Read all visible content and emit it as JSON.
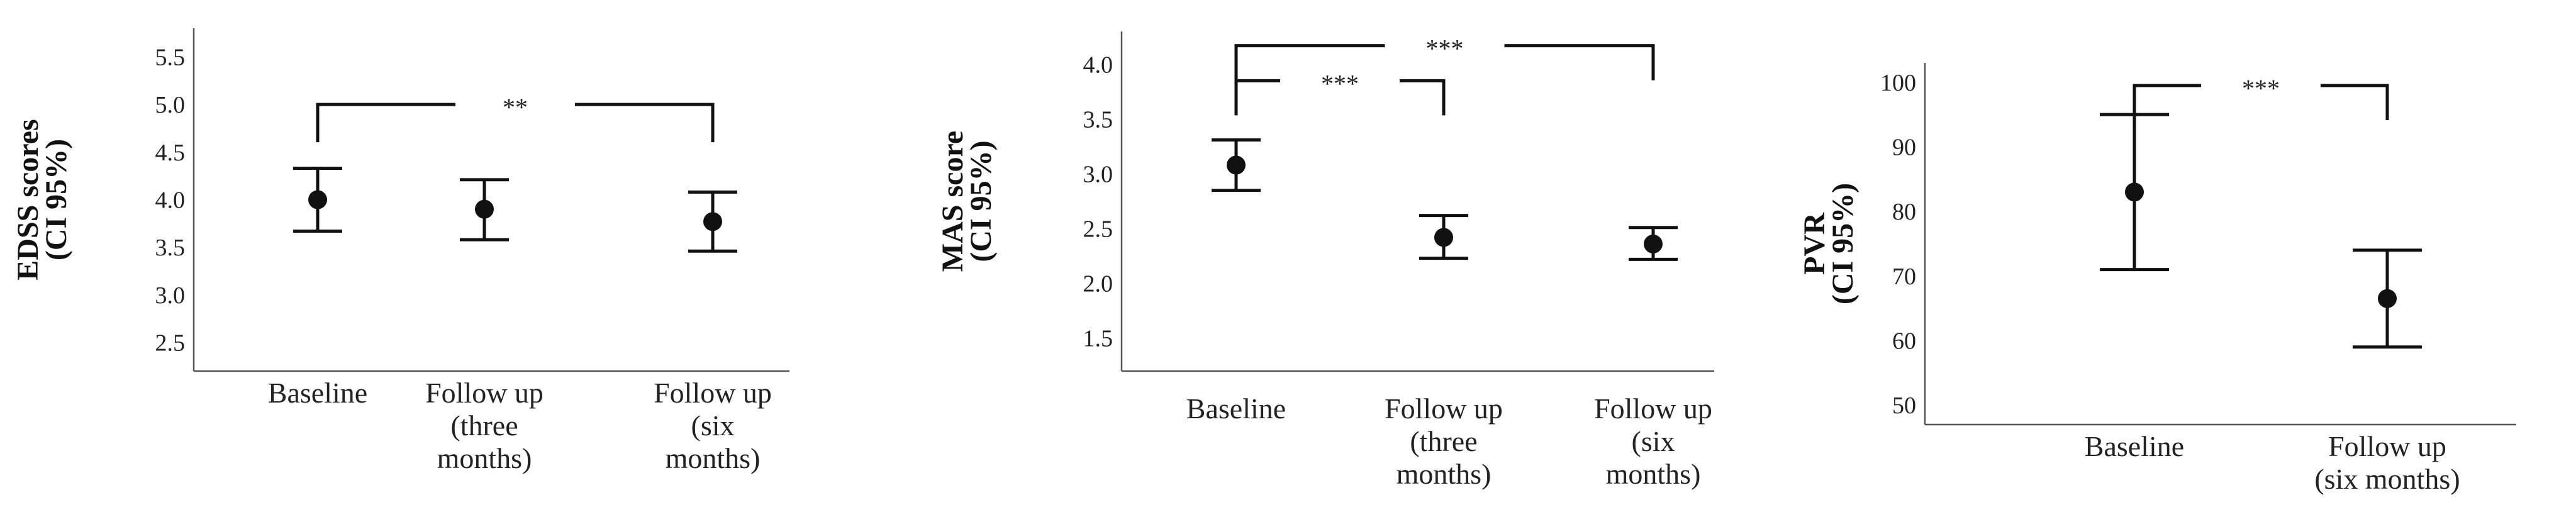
{
  "chart_data": [
    {
      "type": "errorbar",
      "ylabel": [
        "EDSS scores",
        "(CI 95%)"
      ],
      "ylim": [
        2.2,
        5.8
      ],
      "yticks": [
        "2.5",
        "3.0",
        "3.5",
        "4.0",
        "4.5",
        "5.0",
        "5.5"
      ],
      "categories": [
        [
          "Baseline"
        ],
        [
          "Follow up",
          "(three",
          "months)"
        ],
        [
          "Follow up",
          "(six",
          "months)"
        ]
      ],
      "points": [
        {
          "mean": 4.0,
          "low": 3.67,
          "high": 4.33
        },
        {
          "mean": 3.9,
          "low": 3.58,
          "high": 4.21
        },
        {
          "mean": 3.77,
          "low": 3.46,
          "high": 4.08
        }
      ],
      "brackets": [
        {
          "from": 0,
          "to": 2,
          "level": 5.0,
          "label": "**"
        }
      ]
    },
    {
      "type": "errorbar",
      "ylabel": [
        "MAS score",
        "(CI 95%)"
      ],
      "ylim": [
        1.2,
        4.3
      ],
      "yticks": [
        "1.5",
        "2.0",
        "2.5",
        "3.0",
        "3.5",
        "4.0"
      ],
      "categories": [
        [
          "Baseline"
        ],
        [
          "Follow up",
          "(three",
          "months)"
        ],
        [
          "Follow up",
          "(six",
          "months)"
        ]
      ],
      "points": [
        {
          "mean": 3.08,
          "low": 2.85,
          "high": 3.31
        },
        {
          "mean": 2.42,
          "low": 2.23,
          "high": 2.62
        },
        {
          "mean": 2.36,
          "low": 2.22,
          "high": 2.51
        }
      ],
      "brackets": [
        {
          "from": 0,
          "to": 1,
          "level": 3.85,
          "label": "***"
        },
        {
          "from": 0,
          "to": 2,
          "level": 4.17,
          "label": "***"
        }
      ]
    },
    {
      "type": "errorbar",
      "ylabel": [
        "PVR",
        "(CI 95%)"
      ],
      "ylim": [
        47,
        103
      ],
      "yticks": [
        "50",
        "60",
        "70",
        "80",
        "90",
        "100"
      ],
      "categories": [
        [
          "Baseline"
        ],
        [
          "Follow up",
          "(six months)"
        ]
      ],
      "points": [
        {
          "mean": 83,
          "low": 71,
          "high": 95
        },
        {
          "mean": 66.5,
          "low": 59,
          "high": 74
        }
      ],
      "brackets": [
        {
          "from": 0,
          "to": 1,
          "level": 99.5,
          "label": "***"
        }
      ]
    }
  ]
}
